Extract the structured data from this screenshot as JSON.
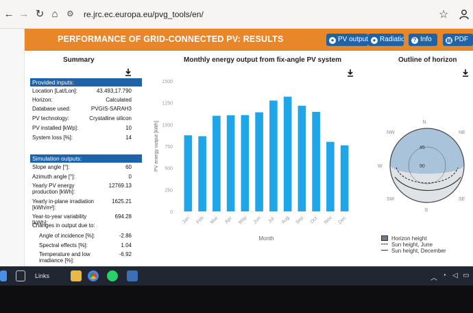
{
  "browser": {
    "url": "re.jrc.ec.europa.eu/pvg_tools/en/"
  },
  "header": {
    "title": "PERFORMANCE OF GRID-CONNECTED PV: RESULTS",
    "buttons": {
      "pv_output": "PV output",
      "radiation": "Radiation",
      "info": "Info",
      "pdf": "PDF"
    }
  },
  "summary": {
    "title": "Summary",
    "provided_inputs_label": "Provided inputs:",
    "inputs": [
      {
        "k": "Location [Lat/Lon]:",
        "v": "43.493,17.790"
      },
      {
        "k": "Horizon:",
        "v": "Calculated"
      },
      {
        "k": "Database used:",
        "v": "PVGIS-SARAH3"
      },
      {
        "k": "PV technology:",
        "v": "Crystalline silicon"
      },
      {
        "k": "PV installed [kWp]:",
        "v": "10"
      },
      {
        "k": "System loss [%]:",
        "v": "14"
      }
    ],
    "simulation_outputs_label": "Simulation outputs:",
    "outputs": [
      {
        "k": "Slope angle [°]:",
        "v": "60"
      },
      {
        "k": "Azimuth angle [°]:",
        "v": "0"
      },
      {
        "k": "Yearly PV energy production [kWh]:",
        "v": "12769.13"
      },
      {
        "k": "Yearly in-plane irradiation [kWh/m²]:",
        "v": "1625.21"
      },
      {
        "k": "Year-to-year variability [kWh]:",
        "v": "694.28"
      }
    ],
    "changes_label": "Changes in output due to:",
    "changes": [
      {
        "k": "Angle of incidence [%]:",
        "v": "-2.86"
      },
      {
        "k": "Spectral effects [%]:",
        "v": "1.04"
      },
      {
        "k": "Temperature and low irradiance [%]:",
        "v": "-6.92"
      }
    ]
  },
  "chart_title": "Monthly energy output from fix-angle PV system",
  "chart_data": {
    "type": "bar",
    "categories": [
      "Jan",
      "Feb",
      "Mar",
      "Apr",
      "May",
      "Jun",
      "Jul",
      "Aug",
      "Sep",
      "Oct",
      "Nov",
      "Dec"
    ],
    "values": [
      875,
      865,
      1100,
      1105,
      1108,
      1140,
      1275,
      1320,
      1215,
      1145,
      800,
      760
    ],
    "xlabel": "Month",
    "ylabel": "PV energy output [kWh]",
    "ylim": [
      0,
      1500
    ],
    "yticks": [
      0,
      250,
      500,
      750,
      1000,
      1250,
      1500
    ],
    "bar_color": "#1ea6e8",
    "grid": false
  },
  "horizon": {
    "title": "Outline of horizon",
    "compass": {
      "n": "N",
      "ne": "NE",
      "e": "",
      "se": "SE",
      "s": "S",
      "sw": "SW",
      "w": "W",
      "nw": "NW"
    },
    "rings": [
      "45",
      "90"
    ],
    "legend": [
      {
        "label": "Horizon height",
        "style": "box"
      },
      {
        "label": "Sun height, June",
        "style": "dashed"
      },
      {
        "label": "Sun height, December",
        "style": "solid"
      }
    ]
  },
  "taskbar": {
    "links_label": "Links"
  },
  "colors": {
    "header": "#e8862a",
    "accent": "#1e63a8",
    "bar": "#1ea6e8"
  }
}
